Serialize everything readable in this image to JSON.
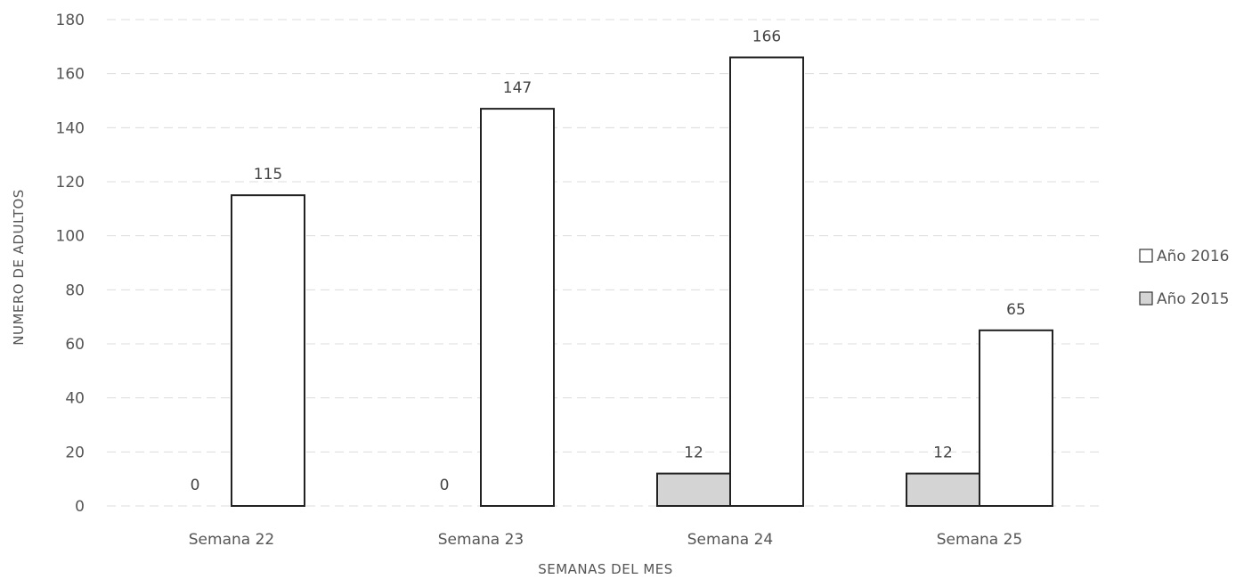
{
  "chart_data": {
    "type": "bar",
    "categories": [
      "Semana 22",
      "Semana 23",
      "Semana 24",
      "Semana 25"
    ],
    "series": [
      {
        "name": "Año 2015",
        "values": [
          0,
          0,
          12,
          12
        ],
        "color": "#d4d4d4"
      },
      {
        "name": "Año 2016",
        "values": [
          115,
          147,
          166,
          65
        ],
        "color": "#ffffff"
      }
    ],
    "legend_order": [
      "Año 2016",
      "Año 2015"
    ],
    "xlabel": "SEMANAS DEL MES",
    "ylabel": "NUMERO DE ADULTOS",
    "ylim": [
      0,
      180
    ],
    "yticks": [
      0,
      20,
      40,
      60,
      80,
      100,
      120,
      140,
      160,
      180
    ],
    "grid": true,
    "legend_position": "right"
  }
}
